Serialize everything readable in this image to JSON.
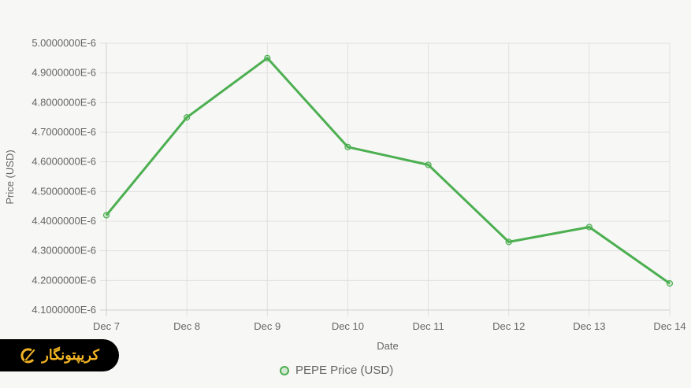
{
  "chart_data": {
    "type": "line",
    "title": "",
    "xlabel": "Date",
    "ylabel": "Price (USD)",
    "categories": [
      "Dec 7",
      "Dec 8",
      "Dec 9",
      "Dec 10",
      "Dec 11",
      "Dec 12",
      "Dec 13",
      "Dec 14"
    ],
    "series": [
      {
        "name": "PEPE Price (USD)",
        "color": "#4caf50",
        "values": [
          4.42e-06,
          4.75e-06,
          4.95e-06,
          4.65e-06,
          4.59e-06,
          4.33e-06,
          4.38e-06,
          4.19e-06
        ]
      }
    ],
    "ylim": [
      4.1e-06,
      5e-06
    ],
    "y_ticks": [
      "5.0000000E-6",
      "4.9000000E-6",
      "4.8000000E-6",
      "4.7000000E-6",
      "4.6000000E-6",
      "4.5000000E-6",
      "4.4000000E-6",
      "4.3000000E-6",
      "4.2000000E-6",
      "4.1000000E-6"
    ],
    "grid": true,
    "legend_position": "bottom"
  },
  "legend": {
    "label": "PEPE Price (USD)"
  },
  "brand": {
    "label": "کریپتونگار"
  }
}
